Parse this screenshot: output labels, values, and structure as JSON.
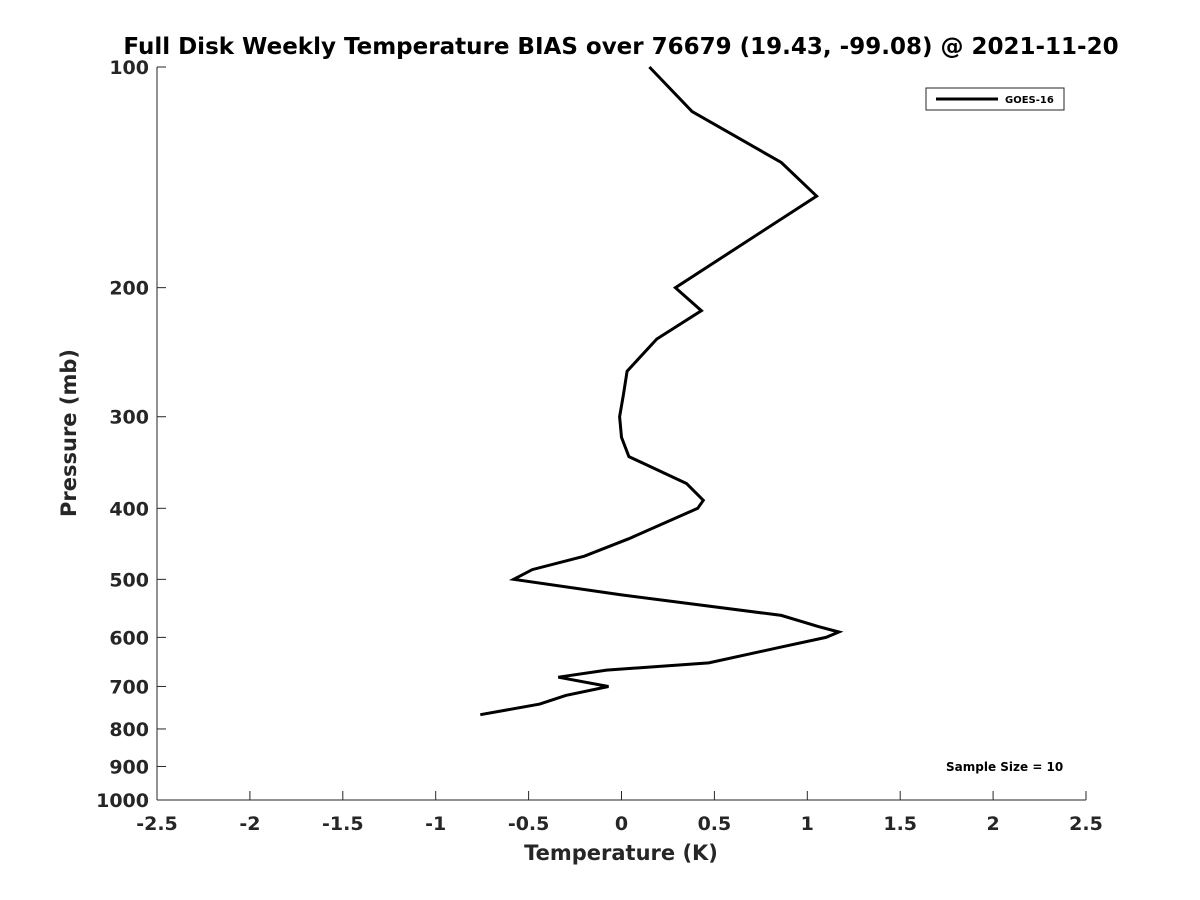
{
  "chart_data": {
    "type": "line",
    "title": "Full Disk Weekly Temperature BIAS over 76679 (19.43, -99.08) @ 2021-11-20",
    "xlabel": "Temperature (K)",
    "ylabel": "Pressure (mb)",
    "xlim": [
      -2.5,
      2.5
    ],
    "ylim": [
      100,
      1000
    ],
    "y_scale": "log",
    "y_reversed": true,
    "x_ticks": [
      "-2.5",
      "-2",
      "-1.5",
      "-1",
      "-0.5",
      "0",
      "0.5",
      "1",
      "1.5",
      "2",
      "2.5"
    ],
    "y_ticks": [
      "100",
      "200",
      "300",
      "400",
      "500",
      "600",
      "700",
      "800",
      "900",
      "1000"
    ],
    "grid": false,
    "legend_position": "top-right",
    "annotation": "Sample Size = 10",
    "series": [
      {
        "name": "GOES-16",
        "color": "#000000",
        "x": [
          0.15,
          0.38,
          0.86,
          1.05,
          0.29,
          0.43,
          0.19,
          0.03,
          0.01,
          -0.01,
          0.0,
          0.04,
          0.35,
          0.44,
          0.41,
          0.04,
          -0.2,
          -0.48,
          -0.58,
          0.0,
          0.86,
          1.06,
          1.17,
          1.1,
          0.84,
          0.47,
          -0.08,
          -0.34,
          -0.07,
          -0.3,
          -0.44,
          -0.76
        ],
        "y": [
          100,
          115,
          135,
          150,
          200,
          215,
          235,
          260,
          280,
          300,
          320,
          340,
          370,
          390,
          400,
          440,
          465,
          485,
          500,
          525,
          560,
          580,
          590,
          600,
          620,
          650,
          665,
          680,
          700,
          720,
          740,
          765
        ]
      }
    ]
  }
}
